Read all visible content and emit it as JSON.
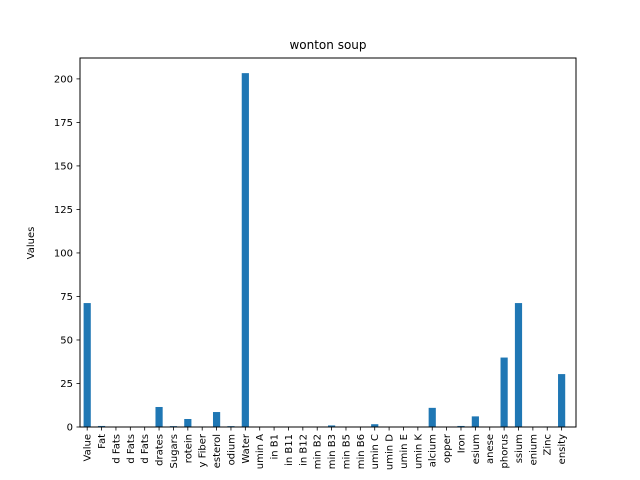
{
  "chart_data": {
    "type": "bar",
    "title": "wonton soup",
    "xlabel": "",
    "ylabel": "Values",
    "ylim": [
      0,
      212
    ],
    "yticks": [
      0,
      25,
      50,
      75,
      100,
      125,
      150,
      175,
      200
    ],
    "grid": false,
    "legend": "none",
    "bar_color": "#1f77b4",
    "categories": [
      "Value",
      "Fat",
      "d Fats",
      "d Fats",
      "d Fats",
      "drates",
      "Sugars",
      "rotein",
      "y Fiber",
      "esterol",
      "odium",
      "Water",
      "umin A",
      "in B1",
      "in B11",
      "in B12",
      "min B2",
      "min B3",
      "min B5",
      "min B6",
      "umin C",
      "umin D",
      "umin E",
      "umin K",
      "alcium",
      "opper",
      "Iron",
      "esium",
      "anese",
      "phorus",
      "ssium",
      "enium",
      "Zinc",
      "ensity"
    ],
    "values": [
      71.2,
      0.6,
      0.2,
      0.2,
      0.2,
      11.5,
      0.5,
      4.6,
      0.3,
      8.6,
      0.5,
      203.3,
      0.1,
      0.1,
      0.0,
      0.1,
      0.1,
      0.9,
      0.2,
      0.1,
      1.6,
      0.0,
      0.1,
      0.0,
      11.0,
      0.1,
      0.6,
      6.1,
      0.1,
      39.9,
      71.2,
      0.1,
      0.3,
      30.4
    ]
  }
}
